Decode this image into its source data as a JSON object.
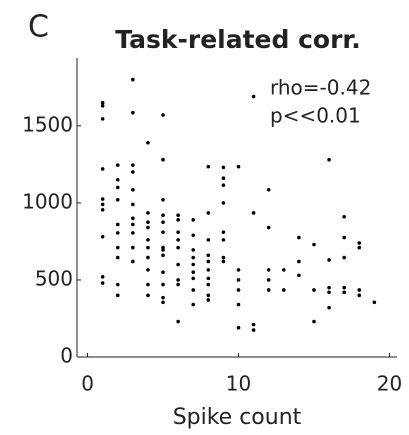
{
  "chart_data": {
    "type": "scatter",
    "panel_label": "C",
    "title": "Task-related corr.",
    "xlabel": "Spike count",
    "annotations": [
      "rho=-0.42",
      "p<<0.01"
    ],
    "color": "#000000",
    "x": [
      1,
      1,
      1,
      1,
      1,
      1,
      1,
      1,
      1,
      1,
      2,
      2,
      2,
      2,
      2,
      2,
      2,
      2,
      2,
      2,
      3,
      3,
      3,
      3,
      3,
      3,
      3,
      3,
      3,
      3,
      3,
      4,
      4,
      4,
      4,
      4,
      4,
      4,
      4,
      4,
      4,
      5,
      5,
      5,
      5,
      5,
      5,
      5,
      5,
      5,
      5,
      5,
      5,
      5,
      6,
      6,
      6,
      6,
      6,
      6,
      6,
      6,
      6,
      7,
      7,
      7,
      7,
      7,
      7,
      7,
      7,
      7,
      8,
      8,
      8,
      8,
      8,
      8,
      8,
      8,
      8,
      8,
      9,
      9,
      9,
      9,
      9,
      9,
      9,
      9,
      10,
      10,
      10,
      10,
      10,
      10,
      11,
      11,
      11,
      11,
      12,
      12,
      12,
      12,
      12,
      13,
      13,
      14,
      14,
      14,
      15,
      15,
      15,
      16,
      16,
      16,
      16,
      16,
      17,
      17,
      17,
      17,
      17,
      18,
      18,
      18,
      18,
      19
    ],
    "y": [
      1650,
      1630,
      1545,
      1220,
      1025,
      990,
      955,
      780,
      520,
      480,
      1245,
      1150,
      1100,
      1020,
      860,
      805,
      710,
      645,
      470,
      400,
      1800,
      1585,
      1245,
      1200,
      1085,
      990,
      900,
      860,
      805,
      710,
      620,
      1390,
      935,
      875,
      840,
      760,
      710,
      645,
      565,
      470,
      400,
      1570,
      1280,
      1020,
      920,
      875,
      810,
      710,
      695,
      660,
      550,
      470,
      385,
      355,
      920,
      890,
      810,
      760,
      710,
      600,
      500,
      470,
      230,
      890,
      790,
      695,
      645,
      600,
      550,
      510,
      435,
      340,
      1235,
      935,
      760,
      660,
      620,
      565,
      510,
      470,
      400,
      370,
      1230,
      1160,
      1115,
      1000,
      810,
      760,
      645,
      620,
      1235,
      565,
      500,
      435,
      340,
      190,
      1690,
      935,
      210,
      175,
      1085,
      840,
      565,
      500,
      435,
      565,
      435,
      775,
      620,
      530,
      730,
      435,
      230,
      1280,
      630,
      450,
      420,
      320,
      910,
      775,
      645,
      450,
      420,
      740,
      710,
      435,
      400,
      355
    ],
    "xlim": [
      -0.7,
      20.5
    ],
    "ylim": [
      0,
      1940
    ],
    "xticks": [
      0,
      10,
      20
    ],
    "yticks": [
      0,
      500,
      1000,
      1500
    ]
  }
}
